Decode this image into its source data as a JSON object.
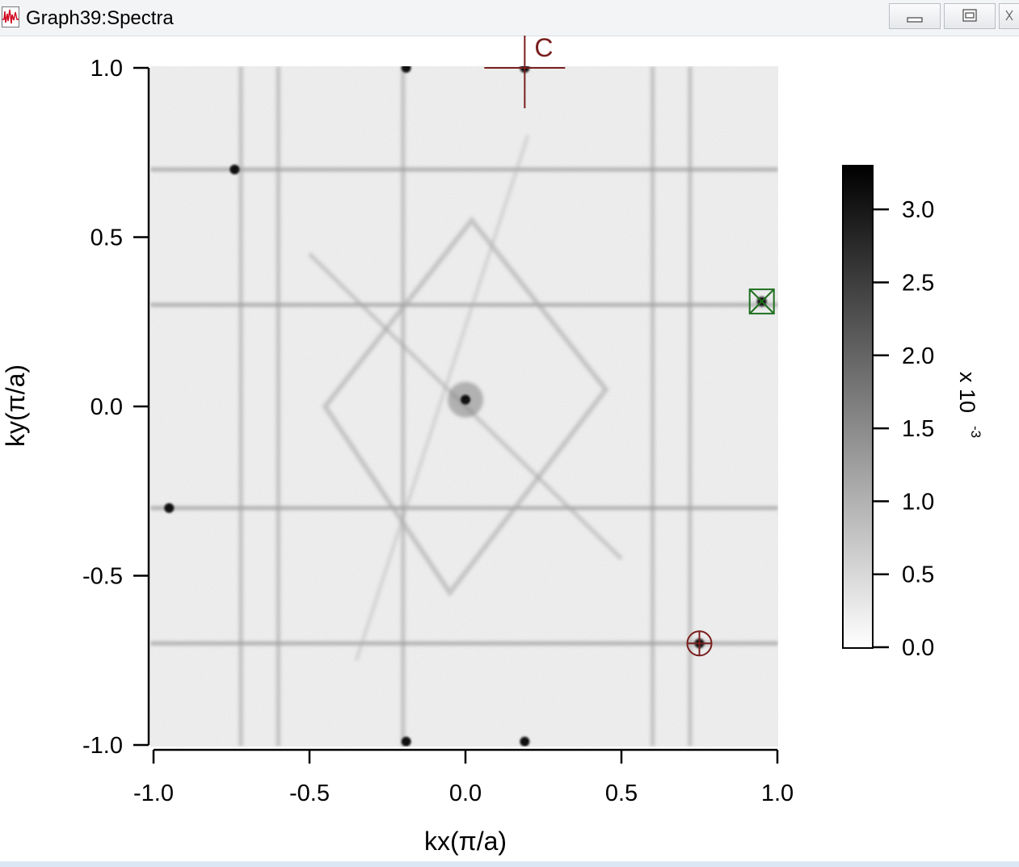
{
  "window": {
    "title": "Graph39:Spectra",
    "buttons": [
      {
        "name": "minimize-button",
        "icon": "minimize-icon"
      },
      {
        "name": "restore-button",
        "icon": "restore-icon"
      },
      {
        "name": "close-button",
        "icon": "close-icon"
      }
    ]
  },
  "chart_data": {
    "type": "heatmap",
    "title": "",
    "xlabel": "kx(π/a)",
    "ylabel": "ky(π/a)",
    "xlim": [
      -1.0,
      1.0
    ],
    "ylim": [
      -1.0,
      1.0
    ],
    "x_ticks": [
      "-1.0",
      "-0.5",
      "0.0",
      "0.5",
      "1.0"
    ],
    "y_ticks": [
      "1.0",
      "0.5",
      "0.0",
      "-0.5",
      "-1.0"
    ],
    "colorscale": "grayscale (white to black)",
    "colorbar": {
      "label": "x 10",
      "exponent": "-3",
      "range": [
        0.0,
        3.3
      ],
      "ticks": [
        "3.0",
        "2.5",
        "2.0",
        "1.5",
        "1.0",
        "0.5",
        "0.0"
      ]
    },
    "horizontal_streaks_ky": [
      0.7,
      0.3,
      -0.3,
      -0.7
    ],
    "vertical_streaks_kx": [
      -0.72,
      -0.6,
      -0.2,
      0.6,
      0.72
    ],
    "bright_spots": [
      {
        "kx": 0.19,
        "ky": 1.0
      },
      {
        "kx": -0.19,
        "ky": 1.0
      },
      {
        "kx": -0.74,
        "ky": 0.7
      },
      {
        "kx": 0.95,
        "ky": 0.31
      },
      {
        "kx": -0.95,
        "ky": -0.3
      },
      {
        "kx": 0.75,
        "ky": -0.7
      },
      {
        "kx": -0.19,
        "ky": -0.99
      },
      {
        "kx": 0.19,
        "ky": -0.99
      },
      {
        "kx": 0.0,
        "ky": 0.02
      }
    ],
    "cursors": [
      {
        "label": "C",
        "style": "crosshair",
        "color": "#7a1f1f",
        "kx": 0.19,
        "ky": 1.0
      },
      {
        "label": "",
        "style": "square-x",
        "color": "#1f6f1f",
        "kx": 0.95,
        "ky": 0.31
      },
      {
        "label": "",
        "style": "circle-cross",
        "color": "#7a1f1f",
        "kx": 0.75,
        "ky": -0.7
      }
    ],
    "grid": false,
    "legend": "none"
  }
}
